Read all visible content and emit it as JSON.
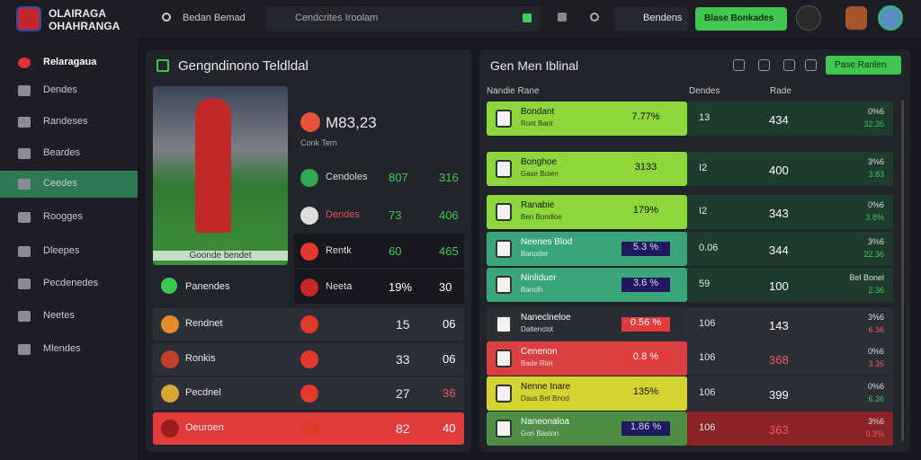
{
  "header": {
    "logo_line1": "OLAIRAGA",
    "logo_line2": "OHAHRANGA",
    "search": "Bedan Bemad",
    "input": "Cendcrites Iroolam",
    "menu": "Bendens",
    "button": "Blase Bonkades"
  },
  "sidebar": {
    "items": [
      "Relaragaua",
      "Dendes",
      "Randeses",
      "Beardes",
      "Ceedes",
      "Roogges",
      "Dleepes",
      "Pecdenedes",
      "Neetes",
      "Mlendes"
    ]
  },
  "left_panel": {
    "title": "Gengndinono Teldldal",
    "image_caption": "Goonde bendet",
    "headline_value": "M83,23",
    "headline_sub": "Conk Tern",
    "section_label": "Panendes",
    "top_rows": [
      [
        "Cendoles",
        "807",
        "316"
      ],
      [
        "Dendes",
        "73",
        "406"
      ],
      [
        "Rentk",
        "60",
        "465"
      ],
      [
        "Neeta",
        "19%",
        "30"
      ]
    ],
    "bottom_rows": [
      [
        "Rendnet",
        "15",
        "06"
      ],
      [
        "Ronkis",
        "33",
        "06"
      ],
      [
        "Pecdnel",
        "27",
        "36"
      ],
      [
        "Oeuroen",
        "82",
        "40"
      ]
    ]
  },
  "right_panel": {
    "title": "Gen Men Iblinal",
    "button": "Pase Ranlen",
    "columns": [
      "Nandie Rane",
      "Dendes",
      "Rade"
    ],
    "rows": [
      [
        "Bondant",
        "Ront Bant",
        "7.77%",
        "13",
        "434",
        "0%6",
        "32.36"
      ],
      [
        "Bonghoe",
        "Gase Bolen",
        "3133",
        "I2",
        "400",
        "3%6",
        "3.83"
      ],
      [
        "Ranabie",
        "Ben Bondloe",
        "179%",
        "I2",
        "343",
        "0%6",
        "3.8%"
      ],
      [
        "Neenes Blod",
        "Banoder",
        "5.3 %",
        "0.06",
        "344",
        "3%6",
        "22.36"
      ],
      [
        "Ninliduer",
        "Bancih",
        "3.6 %",
        "59",
        "100",
        "Bel Bonel",
        "2.36"
      ],
      [
        "Naneclneloe",
        "Daltenctot",
        "0.56 %",
        "106",
        "143",
        "3%6",
        "6.36"
      ],
      [
        "Cenenon",
        "Bade Rtet",
        "0.8 %",
        "106",
        "368",
        "0%6",
        "3.36"
      ],
      [
        "Nenne Inare",
        "Daus Bet Bnod",
        "135%",
        "106",
        "399",
        "0%6",
        "6.36"
      ],
      [
        "Naneonaloa",
        "Gon Baston",
        "1.86 %",
        "106",
        "363",
        "3%6",
        "0.3%"
      ]
    ]
  }
}
